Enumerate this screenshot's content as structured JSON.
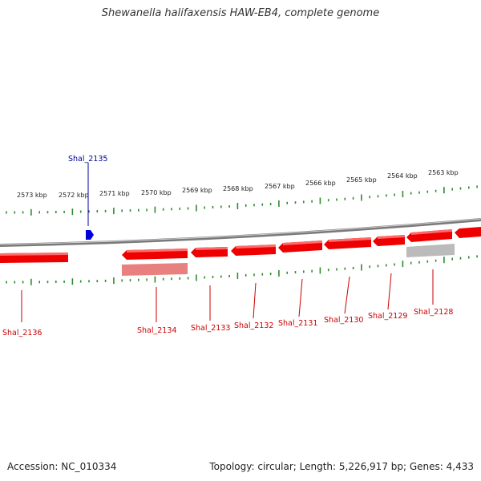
{
  "title": "Shewanella halifaxensis HAW-EB4, complete genome",
  "accession": "Accession: NC_010334",
  "stats": "Topology: circular; Length: 5,226,917 bp; Genes: 4,433",
  "kbp_labels": [
    "2573 kbp",
    "2572 kbp",
    "2571 kbp",
    "2570 kbp",
    "2569 kbp",
    "2568 kbp",
    "2567 kbp",
    "2566 kbp",
    "2565 kbp",
    "2564 kbp",
    "2563 kbp"
  ],
  "genes": [
    {
      "name": "Shal_2136",
      "strand": "minus"
    },
    {
      "name": "Shal_2135",
      "strand": "plus"
    },
    {
      "name": "Shal_2134",
      "strand": "minus"
    },
    {
      "name": "Shal_2133",
      "strand": "minus"
    },
    {
      "name": "Shal_2132",
      "strand": "minus"
    },
    {
      "name": "Shal_2131",
      "strand": "minus"
    },
    {
      "name": "Shal_2130",
      "strand": "minus"
    },
    {
      "name": "Shal_2129",
      "strand": "minus"
    },
    {
      "name": "Shal_2128",
      "strand": "minus"
    }
  ],
  "colors": {
    "minus_strand": "#ee0000",
    "plus_strand": "#0000dd",
    "minus_label": "#cc0000",
    "plus_label": "#000099",
    "tick": "#2e8b2e",
    "backbone": "#8a8a8a",
    "rna_pink": "#e88080",
    "rna_grey": "#bbbbbb"
  }
}
